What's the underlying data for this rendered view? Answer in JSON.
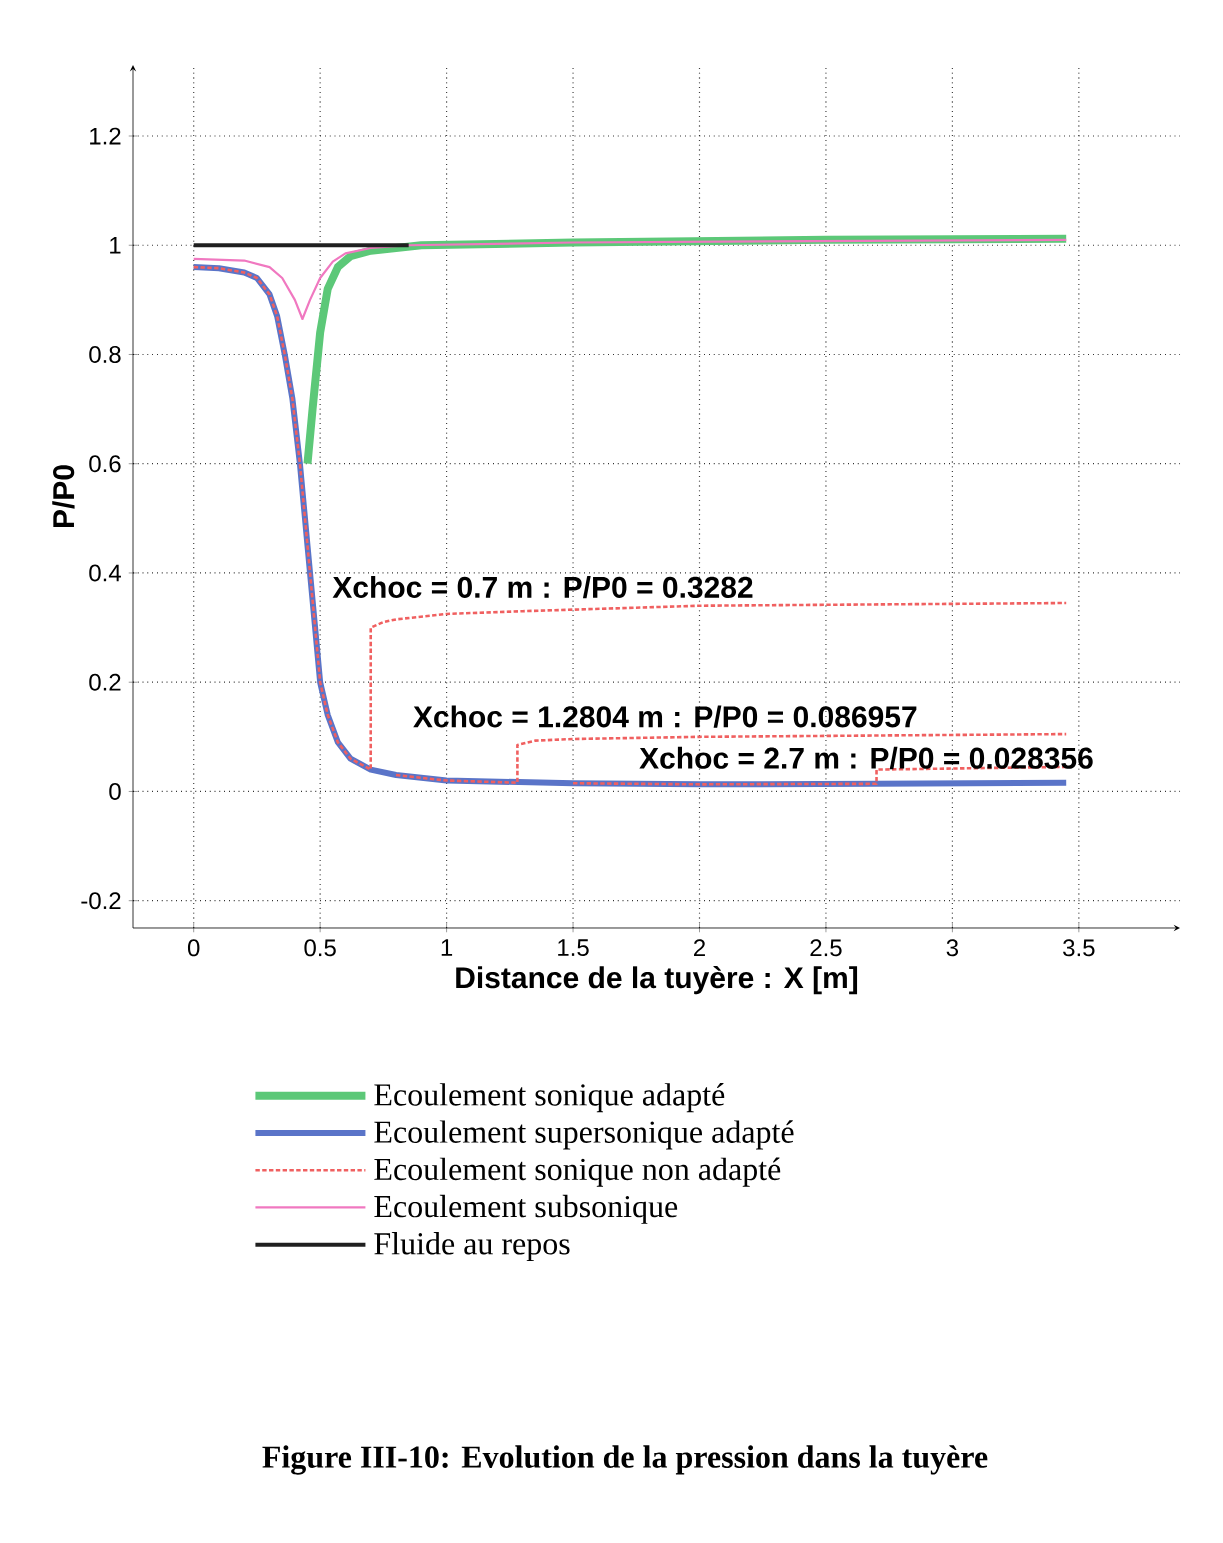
{
  "chart_data": {
    "type": "line",
    "xlabel": "Distance de la tuyère : X [m]",
    "ylabel": "P/P0",
    "xlim": [
      -0.24,
      3.9
    ],
    "ylim": [
      -0.25,
      1.33
    ],
    "xticks": [
      0,
      0.5,
      1,
      1.5,
      2,
      2.5,
      3,
      3.5
    ],
    "yticks": [
      -0.2,
      0,
      0.2,
      0.4,
      0.6,
      0.8,
      1,
      1.2
    ],
    "grid": true,
    "legend": "bottom",
    "series": [
      {
        "name": "Ecoulement sonique adapté",
        "color": "#5cc878",
        "line_style": "solid",
        "x": [
          0.45,
          0.47,
          0.5,
          0.53,
          0.57,
          0.62,
          0.7,
          0.8,
          0.9,
          1.5,
          2.5,
          3.45
        ],
        "values": [
          0.6,
          0.7,
          0.84,
          0.92,
          0.96,
          0.98,
          0.99,
          0.995,
          1.0,
          1.005,
          1.01,
          1.012
        ]
      },
      {
        "name": "Ecoulement supersonique adapté",
        "color": "#5a74c8",
        "line_style": "solid",
        "x": [
          0,
          0.1,
          0.2,
          0.25,
          0.3,
          0.33,
          0.36,
          0.39,
          0.42,
          0.45,
          0.48,
          0.5,
          0.53,
          0.57,
          0.62,
          0.7,
          0.8,
          1.0,
          1.5,
          2.0,
          2.7,
          3.45
        ],
        "values": [
          0.96,
          0.958,
          0.95,
          0.94,
          0.91,
          0.87,
          0.8,
          0.72,
          0.6,
          0.45,
          0.3,
          0.2,
          0.14,
          0.09,
          0.06,
          0.04,
          0.03,
          0.02,
          0.015,
          0.013,
          0.014,
          0.016
        ]
      },
      {
        "name": "Ecoulement sonique non adapté",
        "color": "#f06060",
        "line_style": "dashed",
        "x": [
          0,
          0.1,
          0.2,
          0.25,
          0.3,
          0.33,
          0.36,
          0.39,
          0.42,
          0.45,
          0.48,
          0.5,
          0.53,
          0.57,
          0.62,
          0.7,
          0.7,
          0.75,
          0.8,
          1.0,
          1.3,
          2.0,
          3.45
        ],
        "values": [
          0.96,
          0.958,
          0.95,
          0.94,
          0.91,
          0.87,
          0.8,
          0.72,
          0.6,
          0.45,
          0.3,
          0.2,
          0.14,
          0.09,
          0.06,
          0.04,
          0.3,
          0.31,
          0.315,
          0.325,
          0.33,
          0.34,
          0.345
        ]
      },
      {
        "color": "#f06060",
        "line_style": "dashed",
        "x": [
          0.8,
          1.0,
          1.28,
          1.28,
          1.35,
          1.5,
          2.0,
          3.45
        ],
        "values": [
          0.03,
          0.02,
          0.016,
          0.085,
          0.093,
          0.096,
          0.1,
          0.105
        ]
      },
      {
        "color": "#f06060",
        "line_style": "dashed",
        "x": [
          1.5,
          2.0,
          2.7,
          2.7,
          3.0,
          3.45
        ],
        "values": [
          0.015,
          0.013,
          0.014,
          0.04,
          0.042,
          0.045
        ]
      },
      {
        "name": "Ecoulement subsonique",
        "color": "#f078c0",
        "line_style": "solid",
        "x": [
          0,
          0.2,
          0.3,
          0.35,
          0.4,
          0.43,
          0.46,
          0.5,
          0.55,
          0.6,
          0.7,
          0.85,
          1.5,
          3.45
        ],
        "values": [
          0.975,
          0.972,
          0.96,
          0.94,
          0.9,
          0.865,
          0.9,
          0.94,
          0.97,
          0.985,
          0.995,
          1.0,
          1.005,
          1.01
        ]
      },
      {
        "name": "Fluide au repos",
        "color": "#202020",
        "line_style": "solid",
        "x": [
          0,
          0.85
        ],
        "values": [
          1.0,
          1.0
        ]
      }
    ],
    "annotations": [
      "Xchoc =   0.7  m   : P/P0 = 0.3282",
      "Xchoc =   1.2804  m   : P/P0 = 0.086957",
      "Xchoc =   2.7  m   : P/P0 = 0.028356",
      "Figure III-10: Evolution de la pression dans la tuyère"
    ]
  }
}
